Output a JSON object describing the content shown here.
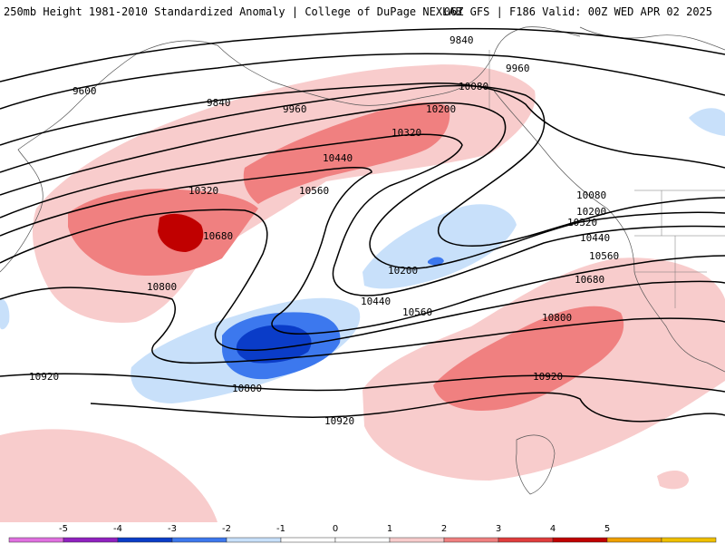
{
  "header": {
    "title_left": "250mb Height 1981-2010 Standardized Anomaly | College of DuPage NEXLAB",
    "title_right": "06Z GFS | F186 Valid: 00Z WED APR 02 2025"
  },
  "map": {
    "variable": "250mb geopotential height (m)",
    "contour_labels": [
      {
        "value": "9600"
      },
      {
        "value": "9840"
      },
      {
        "value": "9840"
      },
      {
        "value": "9960"
      },
      {
        "value": "9960"
      },
      {
        "value": "10080"
      },
      {
        "value": "10200"
      },
      {
        "value": "10320"
      },
      {
        "value": "10440"
      },
      {
        "value": "10320"
      },
      {
        "value": "10560"
      },
      {
        "value": "10680"
      },
      {
        "value": "10800"
      },
      {
        "value": "10080"
      },
      {
        "value": "10200"
      },
      {
        "value": "10320"
      },
      {
        "value": "10440"
      },
      {
        "value": "10560"
      },
      {
        "value": "10680"
      },
      {
        "value": "10200"
      },
      {
        "value": "10440"
      },
      {
        "value": "10560"
      },
      {
        "value": "10800"
      },
      {
        "value": "10920"
      },
      {
        "value": "10800"
      },
      {
        "value": "10920"
      },
      {
        "value": "10920"
      }
    ],
    "anomaly_colors": {
      "minus5": "#e070e0",
      "minus4": "#9020c0",
      "minus3": "#0a3cc8",
      "minus2": "#3c78ee",
      "minus1": "#c8e0fa",
      "plus1": "#f8cccc",
      "plus2": "#f08080",
      "plus3": "#e03c3c",
      "plus4": "#c00000",
      "plus5": "#f0a000"
    }
  },
  "colorbar": {
    "ticks": [
      "-5",
      "-4",
      "-3",
      "-2",
      "-1",
      "0",
      "1",
      "2",
      "3",
      "4",
      "5"
    ],
    "colors": [
      "#e070e0",
      "#9020c0",
      "#0a3cc8",
      "#3c78ee",
      "#c8e0fa",
      "#ffffff",
      "#ffffff",
      "#f8cccc",
      "#f08080",
      "#e03c3c",
      "#c00000",
      "#f0a000",
      "#f0c000"
    ]
  }
}
